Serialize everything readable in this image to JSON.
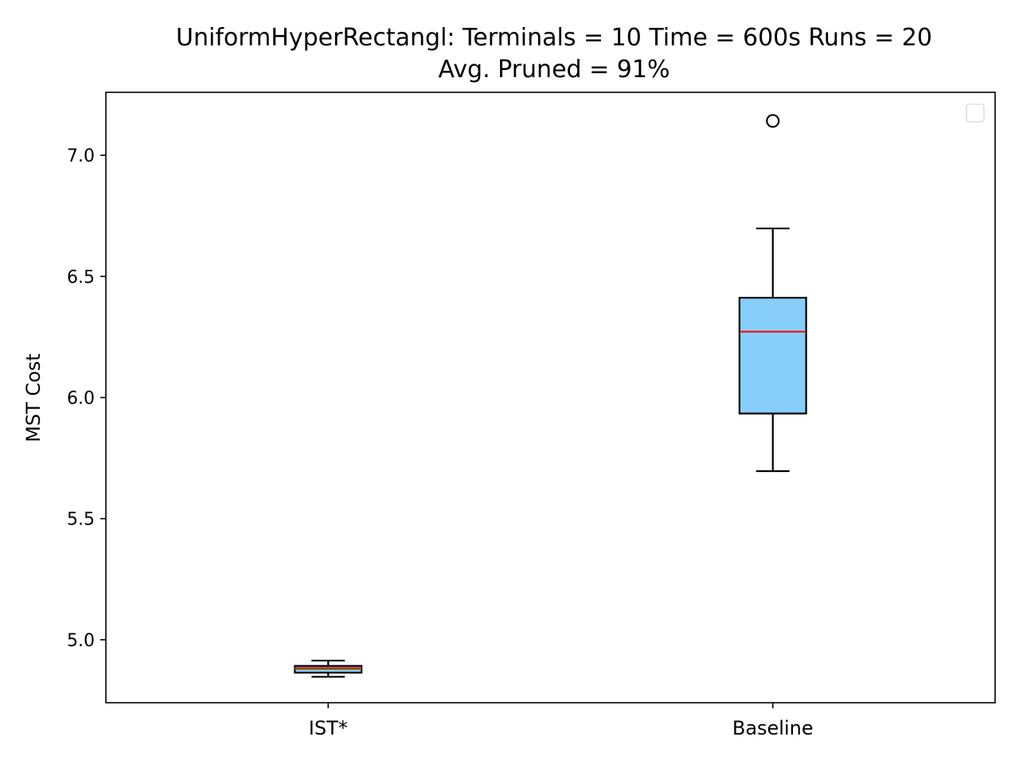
{
  "chart_data": {
    "type": "box",
    "title": "UniformHyperRectangl:  Terminals = 10  Time = 600s  Runs = 20",
    "subtitle": "Avg. Pruned = 91%",
    "xlabel": "",
    "ylabel": "MST Cost",
    "ylim": [
      4.74,
      7.26
    ],
    "yticks": [
      "5.0",
      "5.5",
      "6.0",
      "6.5",
      "7.0"
    ],
    "categories": [
      "IST*",
      "Baseline"
    ],
    "boxes": [
      {
        "label": "IST*",
        "whisker_low": 4.847,
        "q1": 4.864,
        "median": 4.883,
        "mean": 4.879,
        "q3": 4.892,
        "whisker_high": 4.914,
        "outliers": [],
        "face_color": "#87cefa"
      },
      {
        "label": "Baseline",
        "whisker_low": 5.696,
        "q1": 5.934,
        "median": 6.272,
        "q3": 6.412,
        "whisker_high": 6.698,
        "outliers": [
          7.142
        ],
        "face_color": "#87cefa"
      }
    ],
    "median_color": "#ff0000",
    "mean_color": "#2ca02c",
    "legend": "top-right",
    "grid": false
  }
}
